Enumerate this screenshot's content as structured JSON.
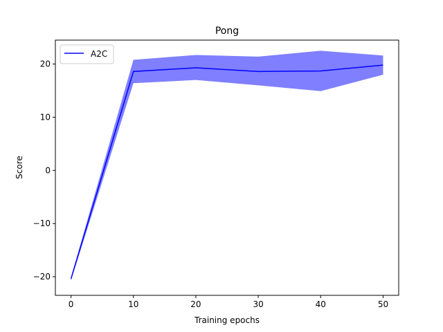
{
  "chart_data": {
    "type": "line",
    "title": "Pong",
    "xlabel": "Training epochs",
    "ylabel": "Score",
    "xlim": [
      -2.5,
      52.5
    ],
    "ylim": [
      -23.5,
      24.5
    ],
    "xticks": [
      0,
      10,
      20,
      30,
      40,
      50
    ],
    "yticks": [
      -20,
      -10,
      0,
      10,
      20
    ],
    "ytick_labels": [
      "−20",
      "−10",
      "0",
      "10",
      "20"
    ],
    "legend": "top-left",
    "series": [
      {
        "name": "A2C",
        "color": "#0000ff",
        "band_color": "#7f7fff",
        "x": [
          0,
          10,
          20,
          30,
          40,
          50
        ],
        "y": [
          -20.4,
          18.6,
          19.3,
          18.6,
          18.7,
          19.8
        ],
        "lower": [
          -20.7,
          16.4,
          17.0,
          16.0,
          14.9,
          18.0
        ],
        "upper": [
          -20.1,
          20.8,
          21.7,
          21.4,
          22.5,
          21.6
        ]
      }
    ]
  }
}
